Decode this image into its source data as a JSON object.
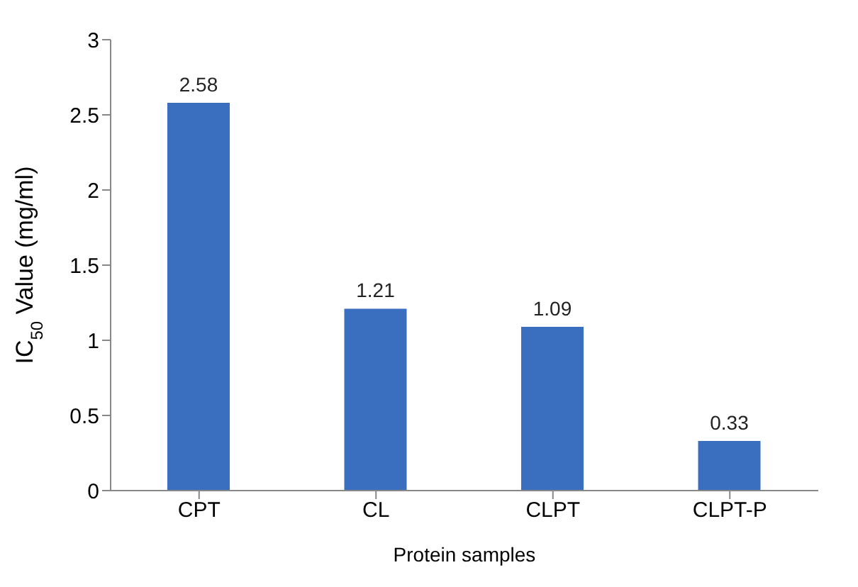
{
  "chart_data": {
    "type": "bar",
    "xlabel": "Protein samples",
    "ylabel": "IC$_{50}$ Value (mg/ml)",
    "categories": [
      "CPT",
      "CL",
      "CLPT",
      "CLPT-P"
    ],
    "values": [
      2.58,
      1.21,
      1.09,
      0.33
    ],
    "color": "#3a6fc0",
    "ylim": [
      0,
      3
    ],
    "yticks": [
      0,
      0.5,
      1,
      1.5,
      2,
      2.5,
      3
    ],
    "data_labels": true,
    "grid": false,
    "legend": false
  }
}
